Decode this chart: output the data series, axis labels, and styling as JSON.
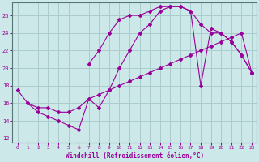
{
  "xlabel": "Windchill (Refroidissement éolien,°C)",
  "background_color": "#cce8e8",
  "grid_color": "#aacccc",
  "line_color": "#990099",
  "xlim": [
    -0.5,
    23.5
  ],
  "ylim": [
    11.5,
    27.5
  ],
  "yticks": [
    12,
    14,
    16,
    18,
    20,
    22,
    24,
    26
  ],
  "xticks": [
    0,
    1,
    2,
    3,
    4,
    5,
    6,
    7,
    8,
    9,
    10,
    11,
    12,
    13,
    14,
    15,
    16,
    17,
    18,
    19,
    20,
    21,
    22,
    23
  ],
  "curve_upper_x": [
    7,
    8,
    9,
    10,
    11,
    12,
    13,
    14,
    15,
    16,
    17,
    18,
    19,
    20,
    21,
    22,
    23
  ],
  "curve_upper_y": [
    20.5,
    22.0,
    24.0,
    25.5,
    26.0,
    26.0,
    26.5,
    27.0,
    27.0,
    27.0,
    26.5,
    25.0,
    24.0,
    24.0,
    23.0,
    21.5,
    19.5
  ],
  "curve_diag_x": [
    0,
    1,
    2,
    3,
    4,
    5,
    6,
    7,
    8,
    9,
    10,
    11,
    12,
    13,
    14,
    15,
    16,
    17,
    18,
    19,
    20,
    21,
    22,
    23
  ],
  "curve_diag_y": [
    17.5,
    16.0,
    15.5,
    15.5,
    15.0,
    15.0,
    15.5,
    16.5,
    17.0,
    17.5,
    18.0,
    18.5,
    19.0,
    19.5,
    20.0,
    20.5,
    21.0,
    21.5,
    22.0,
    22.5,
    23.0,
    23.5,
    24.0,
    19.5
  ],
  "curve_lower_x": [
    1,
    2,
    3,
    4,
    5,
    6,
    7,
    8,
    9,
    10,
    11,
    12,
    13,
    14,
    15,
    16,
    17,
    18,
    19,
    20,
    21,
    22,
    23
  ],
  "curve_lower_y": [
    16.0,
    15.0,
    14.5,
    14.0,
    13.5,
    13.0,
    16.5,
    15.5,
    17.5,
    20.0,
    22.0,
    24.0,
    25.0,
    26.5,
    27.0,
    27.0,
    26.5,
    18.0,
    24.5,
    24.0,
    23.0,
    21.5,
    19.5
  ]
}
